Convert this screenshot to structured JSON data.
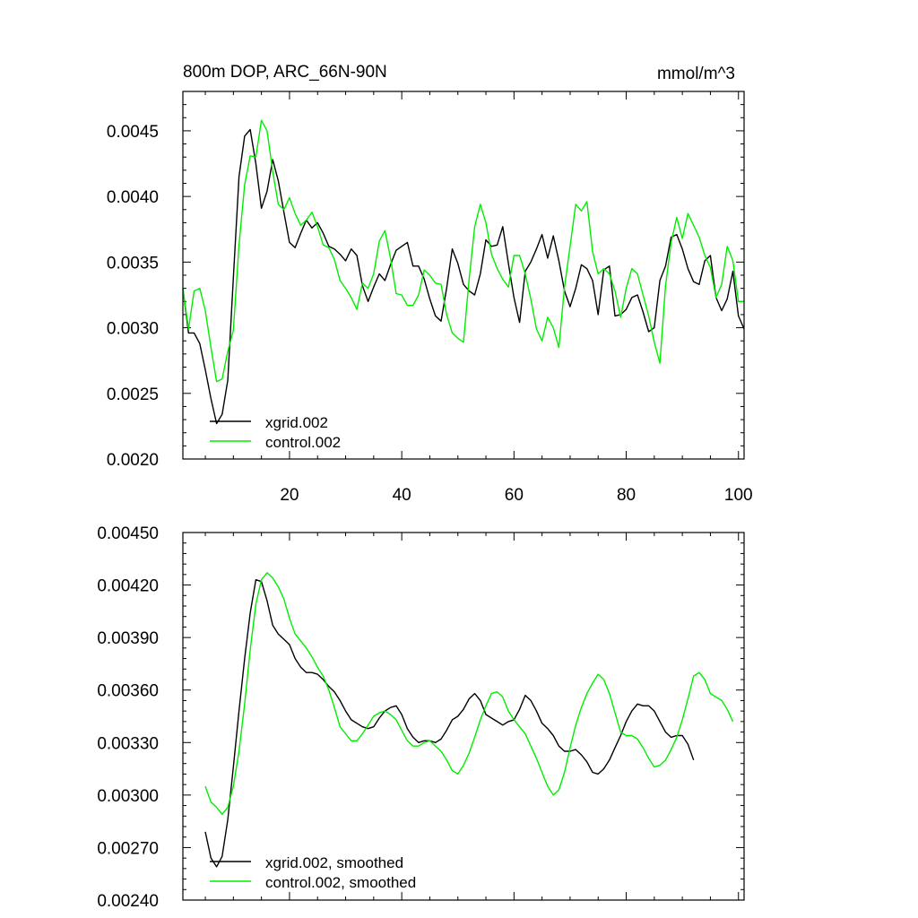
{
  "chart_data": [
    {
      "type": "line",
      "title": "800m DOP, ARC_66N-90N",
      "units": "mmol/m^3",
      "xlim": [
        1,
        101
      ],
      "ylim": [
        0.002,
        0.0048
      ],
      "x_ticks": [
        20,
        40,
        60,
        80,
        100
      ],
      "x_tick_labels": [
        "20",
        "40",
        "60",
        "80",
        "100"
      ],
      "y_ticks": [
        0.002,
        0.0025,
        0.003,
        0.0035,
        0.004,
        0.0045
      ],
      "y_tick_labels": [
        "0.0020",
        "0.0025",
        "0.0030",
        "0.0035",
        "0.0040",
        "0.0045"
      ],
      "legend_position": "bottom-left",
      "series": [
        {
          "name": "xgrid.002",
          "color": "#000000",
          "x_start": 1,
          "values": [
            0.0033,
            0.00296,
            0.00296,
            0.00288,
            0.00268,
            0.00246,
            0.00227,
            0.00234,
            0.0026,
            0.00338,
            0.00415,
            0.00446,
            0.00451,
            0.00425,
            0.00391,
            0.00404,
            0.00428,
            0.00412,
            0.00388,
            0.00365,
            0.00361,
            0.00372,
            0.00382,
            0.00376,
            0.0038,
            0.00372,
            0.00362,
            0.0036,
            0.00356,
            0.00351,
            0.0036,
            0.00355,
            0.00332,
            0.0032,
            0.00331,
            0.00341,
            0.00336,
            0.00348,
            0.00359,
            0.00362,
            0.00365,
            0.00347,
            0.00347,
            0.00337,
            0.00322,
            0.00309,
            0.00305,
            0.0033,
            0.0036,
            0.00349,
            0.00333,
            0.00328,
            0.00325,
            0.00341,
            0.00367,
            0.00362,
            0.00363,
            0.00377,
            0.00349,
            0.00323,
            0.00304,
            0.00343,
            0.0035,
            0.0036,
            0.00371,
            0.00353,
            0.0037,
            0.00351,
            0.00328,
            0.00316,
            0.0033,
            0.00348,
            0.00345,
            0.00336,
            0.0031,
            0.00344,
            0.00347,
            0.00309,
            0.0031,
            0.00314,
            0.00323,
            0.00325,
            0.00312,
            0.00297,
            0.003,
            0.00336,
            0.00347,
            0.00369,
            0.00371,
            0.0036,
            0.00345,
            0.00335,
            0.00333,
            0.00351,
            0.00355,
            0.00323,
            0.00313,
            0.00322,
            0.00343,
            0.00309,
            0.00299
          ]
        },
        {
          "name": "control.002",
          "color": "#00ee00",
          "x_start": 1,
          "values": [
            0.0033,
            0.00299,
            0.00328,
            0.0033,
            0.00313,
            0.00285,
            0.00259,
            0.00261,
            0.00282,
            0.00298,
            0.00363,
            0.00409,
            0.00431,
            0.0043,
            0.00458,
            0.0045,
            0.00419,
            0.00394,
            0.0039,
            0.00399,
            0.00387,
            0.00378,
            0.00382,
            0.00388,
            0.00377,
            0.00363,
            0.00361,
            0.00352,
            0.00336,
            0.0033,
            0.00323,
            0.00314,
            0.00334,
            0.0033,
            0.00341,
            0.00366,
            0.00374,
            0.00353,
            0.00326,
            0.00325,
            0.00317,
            0.00317,
            0.00325,
            0.00344,
            0.0034,
            0.00334,
            0.00333,
            0.0031,
            0.00296,
            0.00292,
            0.00289,
            0.00337,
            0.00377,
            0.00394,
            0.0038,
            0.00356,
            0.00345,
            0.00337,
            0.00331,
            0.00355,
            0.00355,
            0.00341,
            0.00322,
            0.00299,
            0.0029,
            0.00308,
            0.003,
            0.00285,
            0.00331,
            0.00362,
            0.00394,
            0.00389,
            0.00396,
            0.00358,
            0.00341,
            0.00345,
            0.00341,
            0.00328,
            0.00308,
            0.0033,
            0.00345,
            0.00341,
            0.00325,
            0.00309,
            0.00289,
            0.00273,
            0.00332,
            0.00365,
            0.00384,
            0.00368,
            0.00387,
            0.00378,
            0.00369,
            0.00355,
            0.00346,
            0.00323,
            0.00333,
            0.00362,
            0.00351,
            0.0032,
            0.0032
          ]
        }
      ]
    },
    {
      "type": "line",
      "title": "",
      "xlim": [
        1,
        101
      ],
      "ylim": [
        0.0024,
        0.0045
      ],
      "x_ticks": [
        20,
        40,
        60,
        80,
        100
      ],
      "y_ticks": [
        0.0024,
        0.0027,
        0.003,
        0.0033,
        0.0036,
        0.0039,
        0.0042,
        0.0045
      ],
      "y_tick_labels": [
        "0.00240",
        "0.00270",
        "0.00300",
        "0.00330",
        "0.00360",
        "0.00390",
        "0.00420",
        "0.00450"
      ],
      "legend_position": "bottom-left",
      "series": [
        {
          "name": "xgrid.002, smoothed",
          "color": "#000000",
          "x_start": 5,
          "values": [
            0.00279,
            0.00264,
            0.00259,
            0.00265,
            0.00286,
            0.00316,
            0.00348,
            0.00378,
            0.00404,
            0.00423,
            0.00422,
            0.00411,
            0.00397,
            0.00392,
            0.00389,
            0.00386,
            0.00378,
            0.00373,
            0.0037,
            0.0037,
            0.00369,
            0.00366,
            0.00362,
            0.00359,
            0.00354,
            0.00348,
            0.00343,
            0.00341,
            0.00339,
            0.00338,
            0.00339,
            0.00344,
            0.00348,
            0.0035,
            0.00351,
            0.00346,
            0.00338,
            0.00333,
            0.0033,
            0.00331,
            0.00331,
            0.0033,
            0.00332,
            0.00337,
            0.00343,
            0.00345,
            0.00349,
            0.00355,
            0.00358,
            0.00354,
            0.00346,
            0.00344,
            0.00342,
            0.0034,
            0.00342,
            0.00343,
            0.00349,
            0.00357,
            0.00354,
            0.00348,
            0.00341,
            0.00338,
            0.00334,
            0.00328,
            0.00325,
            0.00325,
            0.00326,
            0.00323,
            0.00319,
            0.00313,
            0.00312,
            0.00315,
            0.0032,
            0.00327,
            0.00334,
            0.00342,
            0.00348,
            0.00352,
            0.00351,
            0.00351,
            0.00348,
            0.00342,
            0.00336,
            0.00333,
            0.00334,
            0.00334,
            0.00329,
            0.0032
          ]
        },
        {
          "name": "control.002, smoothed",
          "color": "#00ee00",
          "x_start": 5,
          "values": [
            0.00305,
            0.00296,
            0.00293,
            0.00289,
            0.00293,
            0.00305,
            0.00325,
            0.00352,
            0.00383,
            0.00409,
            0.00423,
            0.00427,
            0.00424,
            0.00419,
            0.00412,
            0.00401,
            0.00392,
            0.00388,
            0.00384,
            0.00379,
            0.00373,
            0.00368,
            0.0036,
            0.0035,
            0.00339,
            0.00335,
            0.00331,
            0.00331,
            0.00335,
            0.0034,
            0.00345,
            0.00347,
            0.00348,
            0.00346,
            0.00343,
            0.00337,
            0.00331,
            0.00328,
            0.00328,
            0.0033,
            0.00331,
            0.00328,
            0.00325,
            0.0032,
            0.00314,
            0.00312,
            0.00317,
            0.00324,
            0.00333,
            0.00343,
            0.00351,
            0.00358,
            0.00359,
            0.00356,
            0.00348,
            0.00343,
            0.00339,
            0.00335,
            0.00328,
            0.00321,
            0.00313,
            0.00305,
            0.003,
            0.00303,
            0.00313,
            0.00327,
            0.0034,
            0.0035,
            0.00358,
            0.00364,
            0.00369,
            0.00366,
            0.00358,
            0.00347,
            0.00336,
            0.00334,
            0.00334,
            0.00332,
            0.00327,
            0.00321,
            0.00316,
            0.00317,
            0.0032,
            0.00326,
            0.00333,
            0.00343,
            0.00355,
            0.00368,
            0.0037,
            0.00366,
            0.00358,
            0.00356,
            0.00354,
            0.00349,
            0.00342
          ]
        }
      ]
    }
  ]
}
